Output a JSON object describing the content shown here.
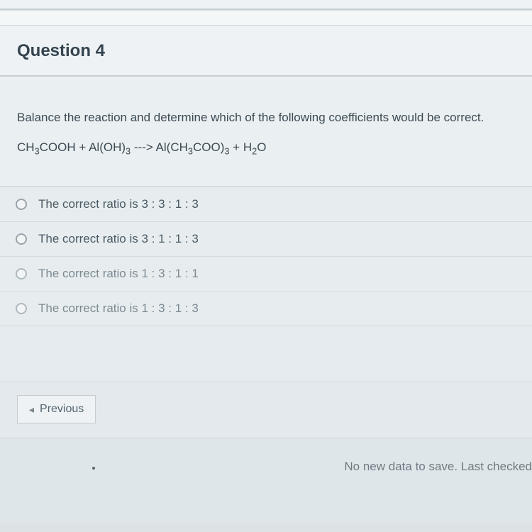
{
  "colors": {
    "page_bg": "#e8ecee",
    "header_bg": "#eef2f4",
    "body_bg": "#eaeff1",
    "border": "#c7cdd1",
    "title_text": "#34444f",
    "body_text": "#3b4a54",
    "option_text": "#4a5a64",
    "faded_text": "#7c8a92",
    "radio_border": "#9aa4aa",
    "button_border": "#c5ccd0",
    "status_text": "#6e7b83"
  },
  "typography": {
    "title_size_pt": 18,
    "body_size_pt": 13,
    "font_family": "Helvetica Neue, Arial, sans-serif"
  },
  "header": {
    "title": "Question 4"
  },
  "prompt": "Balance the reaction and determine which of the following coefficients would be correct.",
  "equation_html": "CH<sub>3</sub>COOH + Al(OH)<sub>3</sub> ---> Al(CH<sub>3</sub>COO)<sub>3</sub> + H<sub>2</sub>O",
  "options": [
    {
      "label": "The correct ratio is 3 : 3 : 1 : 3",
      "faded": false
    },
    {
      "label": "The correct ratio is 3 : 1 : 1 : 3",
      "faded": false
    },
    {
      "label": "The correct ratio is 1 : 3 : 1 : 1",
      "faded": true
    },
    {
      "label": "The correct ratio is 1 : 3 : 1 : 3",
      "faded": true
    }
  ],
  "nav": {
    "previous_label": "Previous",
    "arrow_glyph": "◂"
  },
  "status": "No new data to save. Last checked"
}
